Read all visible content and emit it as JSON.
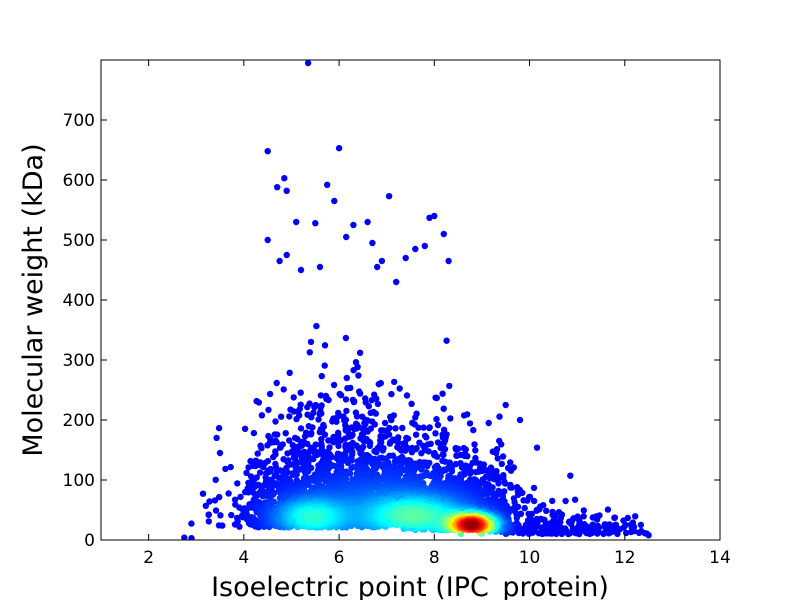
{
  "chart_data": {
    "type": "scatter",
    "title": "",
    "xlabel": "Isoelectric point (IPC_protein)",
    "ylabel": "Molecular weight (kDa)",
    "xlim": [
      1,
      14
    ],
    "ylim": [
      0,
      800
    ],
    "xticks": [
      2,
      4,
      6,
      8,
      10,
      12,
      14
    ],
    "yticks": [
      0,
      100,
      200,
      300,
      400,
      500,
      600,
      700
    ],
    "grid": false,
    "legend": "none",
    "colormap": "jet (point density)",
    "clusters": [
      {
        "name": "",
        "pI_center": 5.4,
        "mw_center": 38,
        "pI_spread": 0.75,
        "mw_spread": 60,
        "count": 1400
      },
      {
        "name": "",
        "pI_center": 7.0,
        "mw_center": 45,
        "pI_spread": 0.9,
        "mw_spread": 65,
        "count": 1300
      },
      {
        "name": "",
        "pI_center": 8.6,
        "mw_center": 30,
        "pI_spread": 0.55,
        "mw_spread": 40,
        "count": 1200
      },
      {
        "name": "",
        "pI_center": 10.6,
        "mw_center": 18,
        "pI_spread": 0.9,
        "mw_spread": 15,
        "count": 250
      }
    ],
    "outliers": [
      [
        5.35,
        795
      ],
      [
        4.5,
        648
      ],
      [
        6.0,
        653
      ],
      [
        4.7,
        588
      ],
      [
        4.85,
        603
      ],
      [
        4.9,
        582
      ],
      [
        5.75,
        592
      ],
      [
        5.9,
        565
      ],
      [
        7.05,
        573
      ],
      [
        8.0,
        540
      ],
      [
        7.9,
        537
      ],
      [
        8.2,
        510
      ],
      [
        8.3,
        465
      ],
      [
        4.5,
        500
      ],
      [
        5.1,
        530
      ],
      [
        5.5,
        528
      ],
      [
        6.3,
        525
      ],
      [
        6.6,
        530
      ],
      [
        6.15,
        505
      ],
      [
        6.7,
        495
      ],
      [
        7.6,
        485
      ],
      [
        7.8,
        490
      ],
      [
        4.75,
        465
      ],
      [
        4.9,
        475
      ],
      [
        5.2,
        450
      ],
      [
        5.6,
        455
      ],
      [
        6.9,
        465
      ],
      [
        6.8,
        455
      ],
      [
        7.4,
        470
      ],
      [
        7.2,
        430
      ],
      [
        3.5,
        145
      ],
      [
        3.2,
        57
      ],
      [
        2.9,
        3
      ],
      [
        2.75,
        4
      ],
      [
        9.5,
        225
      ],
      [
        9.8,
        200
      ],
      [
        9.3,
        145
      ],
      [
        9.55,
        120
      ],
      [
        9.45,
        108
      ],
      [
        12.2,
        15
      ],
      [
        12.5,
        8
      ],
      [
        12.3,
        12
      ],
      [
        11.9,
        18
      ],
      [
        11.7,
        20
      ]
    ]
  }
}
